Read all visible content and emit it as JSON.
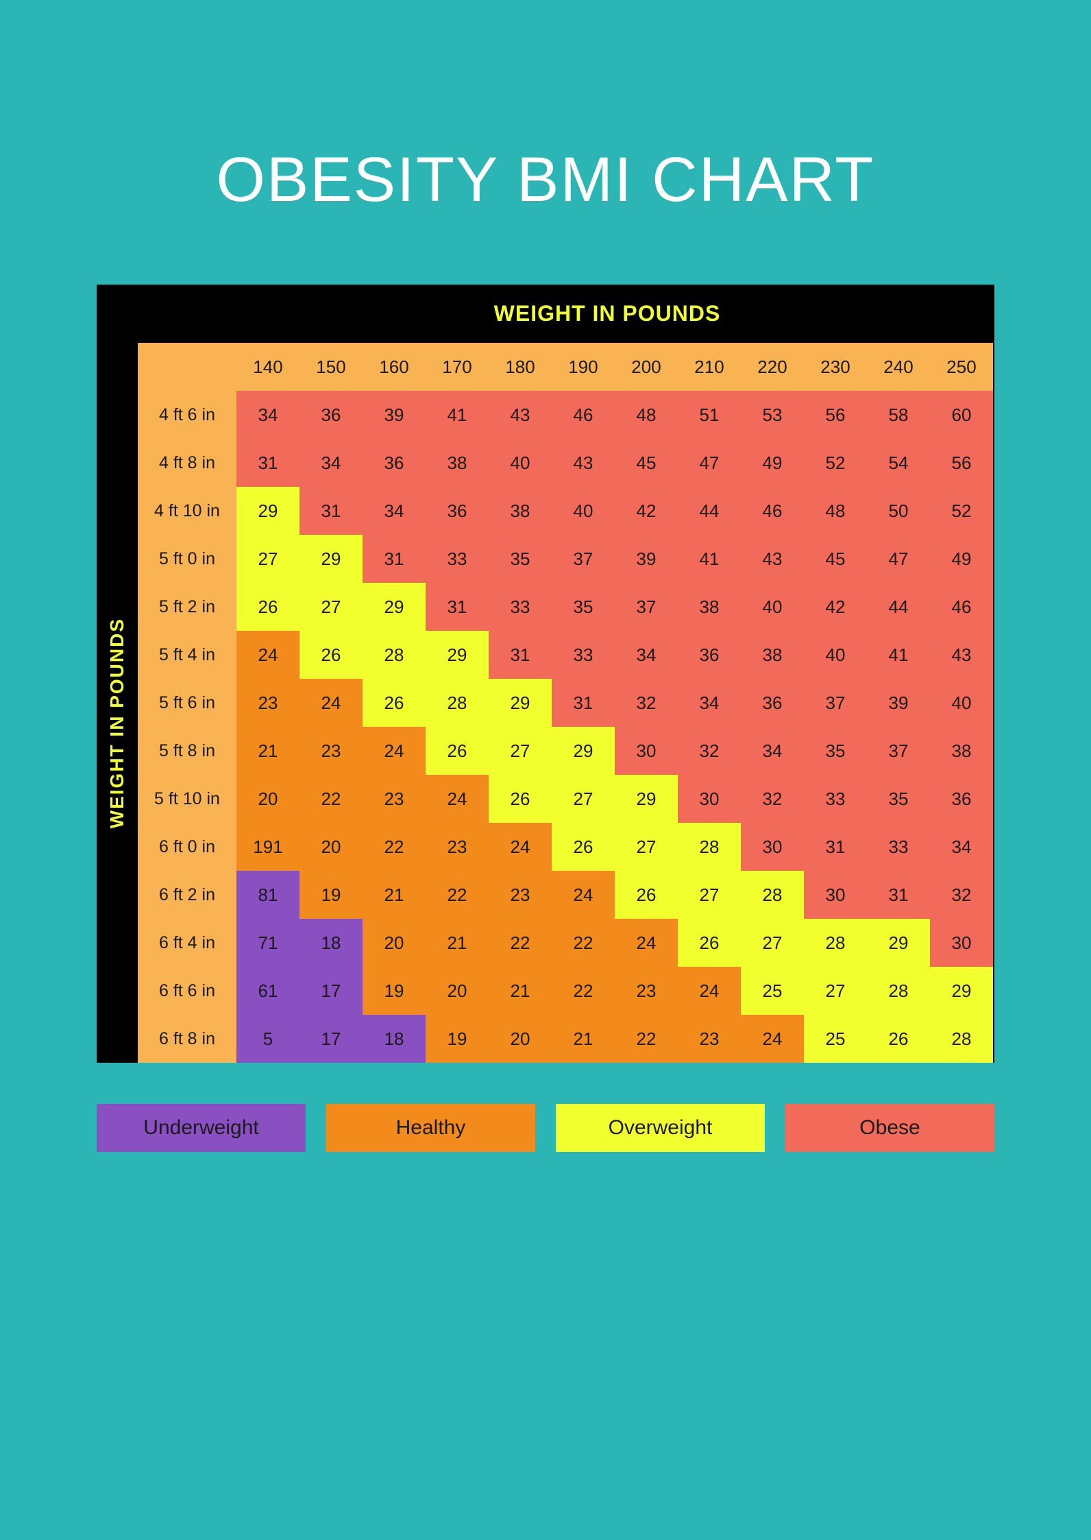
{
  "title": "OBESITY BMI CHART",
  "axis": {
    "top_label": "WEIGHT IN POUNDS",
    "left_label": "WEIGHT IN POUNDS"
  },
  "colors": {
    "page_bg": "#2bb5b5",
    "black": "#000000",
    "header_cell": "#f9b352",
    "underweight": "#8a4fc0",
    "healthy": "#f28a1c",
    "overweight": "#f2ff2e",
    "obese": "#f26a5a",
    "title_text": "#ffffff",
    "axis_text": "#f2ff2e",
    "cell_text": "#1a1a1a"
  },
  "typography": {
    "title_fontsize": 92,
    "axis_fontsize": 30,
    "cell_fontsize": 26,
    "legend_fontsize": 30
  },
  "weights": [
    "140",
    "150",
    "160",
    "170",
    "180",
    "190",
    "200",
    "210",
    "220",
    "230",
    "240",
    "250"
  ],
  "heights": [
    "4 ft 6 in",
    "4 ft 8 in",
    "4 ft 10 in",
    "5 ft 0 in",
    "5 ft 2 in",
    "5 ft 4 in",
    "5 ft 6 in",
    "5 ft 8 in",
    "5 ft 10 in",
    "6 ft 0 in",
    "6 ft 2 in",
    "6 ft 4 in",
    "6 ft 6 in",
    "6 ft 8 in"
  ],
  "bmi": [
    [
      "34",
      "36",
      "39",
      "41",
      "43",
      "46",
      "48",
      "51",
      "53",
      "56",
      "58",
      "60"
    ],
    [
      "31",
      "34",
      "36",
      "38",
      "40",
      "43",
      "45",
      "47",
      "49",
      "52",
      "54",
      "56"
    ],
    [
      "29",
      "31",
      "34",
      "36",
      "38",
      "40",
      "42",
      "44",
      "46",
      "48",
      "50",
      "52"
    ],
    [
      "27",
      "29",
      "31",
      "33",
      "35",
      "37",
      "39",
      "41",
      "43",
      "45",
      "47",
      "49"
    ],
    [
      "26",
      "27",
      "29",
      "31",
      "33",
      "35",
      "37",
      "38",
      "40",
      "42",
      "44",
      "46"
    ],
    [
      "24",
      "26",
      "28",
      "29",
      "31",
      "33",
      "34",
      "36",
      "38",
      "40",
      "41",
      "43"
    ],
    [
      "23",
      "24",
      "26",
      "28",
      "29",
      "31",
      "32",
      "34",
      "36",
      "37",
      "39",
      "40"
    ],
    [
      "21",
      "23",
      "24",
      "26",
      "27",
      "29",
      "30",
      "32",
      "34",
      "35",
      "37",
      "38"
    ],
    [
      "20",
      "22",
      "23",
      "24",
      "26",
      "27",
      "29",
      "30",
      "32",
      "33",
      "35",
      "36"
    ],
    [
      "191",
      "20",
      "22",
      "23",
      "24",
      "26",
      "27",
      "28",
      "30",
      "31",
      "33",
      "34"
    ],
    [
      "81",
      "19",
      "21",
      "22",
      "23",
      "24",
      "26",
      "27",
      "28",
      "30",
      "31",
      "32"
    ],
    [
      "71",
      "18",
      "20",
      "21",
      "22",
      "22",
      "24",
      "26",
      "27",
      "28",
      "29",
      "30"
    ],
    [
      "61",
      "17",
      "19",
      "20",
      "21",
      "22",
      "23",
      "24",
      "25",
      "27",
      "28",
      "29"
    ],
    [
      "5",
      "17",
      "18",
      "19",
      "20",
      "21",
      "22",
      "23",
      "24",
      "25",
      "26",
      "28"
    ]
  ],
  "category": [
    [
      "obese",
      "obese",
      "obese",
      "obese",
      "obese",
      "obese",
      "obese",
      "obese",
      "obese",
      "obese",
      "obese",
      "obese"
    ],
    [
      "obese",
      "obese",
      "obese",
      "obese",
      "obese",
      "obese",
      "obese",
      "obese",
      "obese",
      "obese",
      "obese",
      "obese"
    ],
    [
      "over",
      "obese",
      "obese",
      "obese",
      "obese",
      "obese",
      "obese",
      "obese",
      "obese",
      "obese",
      "obese",
      "obese"
    ],
    [
      "over",
      "over",
      "obese",
      "obese",
      "obese",
      "obese",
      "obese",
      "obese",
      "obese",
      "obese",
      "obese",
      "obese"
    ],
    [
      "over",
      "over",
      "over",
      "obese",
      "obese",
      "obese",
      "obese",
      "obese",
      "obese",
      "obese",
      "obese",
      "obese"
    ],
    [
      "healthy",
      "over",
      "over",
      "over",
      "obese",
      "obese",
      "obese",
      "obese",
      "obese",
      "obese",
      "obese",
      "obese"
    ],
    [
      "healthy",
      "healthy",
      "over",
      "over",
      "over",
      "obese",
      "obese",
      "obese",
      "obese",
      "obese",
      "obese",
      "obese"
    ],
    [
      "healthy",
      "healthy",
      "healthy",
      "over",
      "over",
      "over",
      "obese",
      "obese",
      "obese",
      "obese",
      "obese",
      "obese"
    ],
    [
      "healthy",
      "healthy",
      "healthy",
      "healthy",
      "over",
      "over",
      "over",
      "obese",
      "obese",
      "obese",
      "obese",
      "obese"
    ],
    [
      "healthy",
      "healthy",
      "healthy",
      "healthy",
      "healthy",
      "over",
      "over",
      "over",
      "obese",
      "obese",
      "obese",
      "obese"
    ],
    [
      "under",
      "healthy",
      "healthy",
      "healthy",
      "healthy",
      "healthy",
      "over",
      "over",
      "over",
      "obese",
      "obese",
      "obese"
    ],
    [
      "under",
      "under",
      "healthy",
      "healthy",
      "healthy",
      "healthy",
      "healthy",
      "over",
      "over",
      "over",
      "over",
      "obese"
    ],
    [
      "under",
      "under",
      "healthy",
      "healthy",
      "healthy",
      "healthy",
      "healthy",
      "healthy",
      "over",
      "over",
      "over",
      "over"
    ],
    [
      "under",
      "under",
      "under",
      "healthy",
      "healthy",
      "healthy",
      "healthy",
      "healthy",
      "healthy",
      "over",
      "over",
      "over"
    ]
  ],
  "legend": [
    {
      "label": "Underweight",
      "key": "under"
    },
    {
      "label": "Healthy",
      "key": "healthy"
    },
    {
      "label": "Overweight",
      "key": "over"
    },
    {
      "label": "Obese",
      "key": "obese"
    }
  ]
}
